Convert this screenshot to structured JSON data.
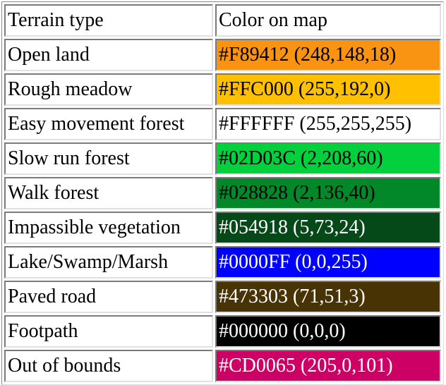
{
  "table": {
    "header": {
      "terrain": "Terrain type",
      "color": "Color on map"
    },
    "rows": [
      {
        "terrain": "Open land",
        "color_text": "#F89412 (248,148,18)",
        "bg": "#F89412",
        "fg": "#000000"
      },
      {
        "terrain": "Rough meadow",
        "color_text": "#FFC000 (255,192,0)",
        "bg": "#FFC000",
        "fg": "#000000"
      },
      {
        "terrain": "Easy movement forest",
        "color_text": "#FFFFFF (255,255,255)",
        "bg": "#FFFFFF",
        "fg": "#000000"
      },
      {
        "terrain": "Slow run forest",
        "color_text": "#02D03C (2,208,60)",
        "bg": "#02D03C",
        "fg": "#000000"
      },
      {
        "terrain": "Walk forest",
        "color_text": "#028828 (2,136,40)",
        "bg": "#028828",
        "fg": "#000000"
      },
      {
        "terrain": "Impassible vegetation",
        "color_text": "#054918 (5,73,24)",
        "bg": "#054918",
        "fg": "#FFFFFF"
      },
      {
        "terrain": "Lake/Swamp/Marsh",
        "color_text": "#0000FF (0,0,255)",
        "bg": "#0000FF",
        "fg": "#FFFFFF"
      },
      {
        "terrain": "Paved road",
        "color_text": "#473303 (71,51,3)",
        "bg": "#473303",
        "fg": "#FFFFFF"
      },
      {
        "terrain": "Footpath",
        "color_text": "#000000 (0,0,0)",
        "bg": "#000000",
        "fg": "#FFFFFF"
      },
      {
        "terrain": "Out of bounds",
        "color_text": "#CD0065 (205,0,101)",
        "bg": "#CD0065",
        "fg": "#FFFFFF"
      }
    ]
  }
}
